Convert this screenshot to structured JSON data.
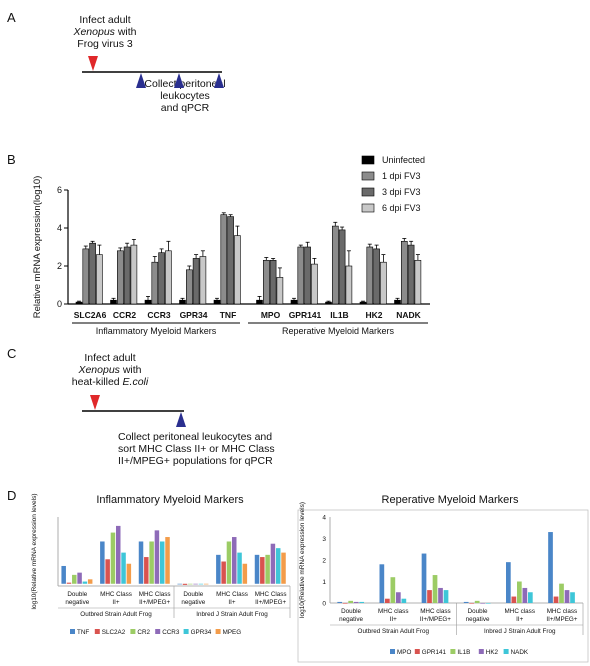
{
  "panels": {
    "A": {
      "letter": "A",
      "infect_line1": "Infect adult",
      "infect_line2": "Xenopus",
      "infect_line2b": " with",
      "infect_line3": "Frog virus 3",
      "collect_line1": "Collect peritoneal",
      "collect_line2": "leukocytes",
      "collect_line3": "and qPCR",
      "red_color": "#e0282a",
      "blue_color": "#2a2f8f"
    },
    "B": {
      "letter": "B"
    },
    "C": {
      "letter": "C",
      "infect_line1": "Infect adult",
      "infect_line2": "Xenopus",
      "infect_line2b": " with",
      "infect_line3a": "heat-killed ",
      "infect_line3b": "E.coli",
      "collect_line1": "Collect peritoneal leukocytes and",
      "collect_line2": "sort MHC Class II+ or MHC Class",
      "collect_line3": "II+/MPEG+ populations for qPCR"
    },
    "D": {
      "letter": "D",
      "left_title": "Inflammatory Myeloid Markers",
      "right_title": "Reperative Myeloid Markers"
    }
  },
  "chart_data": [
    {
      "type": "bar",
      "panel": "B",
      "ylabel": "Relative mRNA expression(log10)",
      "ylim": [
        0,
        6
      ],
      "yticks": [
        0,
        2,
        4,
        6
      ],
      "categories": [
        "SLC2A6",
        "CCR2",
        "CCR3",
        "GPR34",
        "TNF",
        "MPO",
        "GPR141",
        "IL1B",
        "HK2",
        "NADK"
      ],
      "groups": [
        {
          "label": "Inflammatory Myeloid Markers",
          "from": 0,
          "to": 4
        },
        {
          "label": "Reperative Myeloid Markers",
          "from": 5,
          "to": 9
        }
      ],
      "series": [
        {
          "name": "Uninfected",
          "color": "#000000",
          "values": [
            0.1,
            0.2,
            0.2,
            0.2,
            0.2,
            0.2,
            0.2,
            0.1,
            0.1,
            0.2
          ],
          "errors": [
            0.05,
            0.1,
            0.2,
            0.1,
            0.1,
            0.2,
            0.1,
            0.05,
            0.05,
            0.1
          ]
        },
        {
          "name": "1 dpi FV3",
          "color": "#8c8c8c",
          "values": [
            2.9,
            2.8,
            2.2,
            1.8,
            4.7,
            2.3,
            3.0,
            4.1,
            3.0,
            3.3
          ],
          "errors": [
            0.15,
            0.15,
            0.3,
            0.2,
            0.1,
            0.15,
            0.1,
            0.2,
            0.15,
            0.15
          ]
        },
        {
          "name": "3 dpi FV3",
          "color": "#6a6a6a",
          "values": [
            3.2,
            3.0,
            2.7,
            2.4,
            4.6,
            2.3,
            3.0,
            3.9,
            2.9,
            3.1
          ],
          "errors": [
            0.1,
            0.2,
            0.2,
            0.2,
            0.1,
            0.1,
            0.25,
            0.15,
            0.2,
            0.2
          ]
        },
        {
          "name": "6 dpi FV3",
          "color": "#c8c8c8",
          "values": [
            2.6,
            3.1,
            2.8,
            2.5,
            3.6,
            1.4,
            2.1,
            2.0,
            2.2,
            2.3
          ],
          "errors": [
            0.5,
            0.3,
            0.5,
            0.3,
            0.5,
            0.5,
            0.3,
            0.8,
            0.4,
            0.3
          ]
        }
      ],
      "legend_position": "top-right"
    },
    {
      "type": "bar",
      "panel": "D-left",
      "title": "Inflammatory Myeloid Markers",
      "ylabel": "log10(Relative mRNA expression levels)",
      "categories": [
        "Double negative",
        "MHC Class II+",
        "MHC Class II+/MPEG+",
        "Double negative",
        "MHC Class II+",
        "MHC Class II+/MPEG+"
      ],
      "category_groups": [
        {
          "label": "Outbred Strain Adult Frog",
          "from": 0,
          "to": 2
        },
        {
          "label": "Inbred J Strain Adult Frog",
          "from": 3,
          "to": 5
        }
      ],
      "ylim": [
        0,
        3
      ],
      "series": [
        {
          "name": "TNF",
          "color": "#4a86c8",
          "values": [
            0.8,
            1.9,
            1.9,
            0.0,
            1.3,
            1.3
          ]
        },
        {
          "name": "SLC2A2",
          "color": "#d9534f",
          "values": [
            0.05,
            1.1,
            1.2,
            -0.05,
            1.0,
            1.2
          ]
        },
        {
          "name": "CR2",
          "color": "#9ccc65",
          "values": [
            0.4,
            2.3,
            1.9,
            0.0,
            1.9,
            1.3
          ]
        },
        {
          "name": "CCR3",
          "color": "#8e6bb8",
          "values": [
            0.5,
            2.6,
            2.4,
            0.0,
            2.1,
            1.8
          ]
        },
        {
          "name": "GPR34",
          "color": "#3ec6d8",
          "values": [
            0.1,
            1.4,
            1.9,
            0.0,
            1.4,
            1.6
          ]
        },
        {
          "name": "MPEG",
          "color": "#f39c4a",
          "values": [
            0.2,
            0.9,
            2.1,
            0.0,
            0.9,
            1.4
          ]
        }
      ]
    },
    {
      "type": "bar",
      "panel": "D-right",
      "title": "Reperative Myeloid Markers",
      "ylabel": "log10(Relative mRNA expression levels)",
      "ylim": [
        0,
        4
      ],
      "yticks": [
        0,
        1,
        2,
        3,
        4
      ],
      "categories": [
        "Double negative",
        "MHC class II+",
        "MHC class II+/MPEG+",
        "Double negative",
        "MHC class II+",
        "MHC class II+/MPEG+"
      ],
      "category_groups": [
        {
          "label": "Outbred Strain Adult Frog",
          "from": 0,
          "to": 2
        },
        {
          "label": "Inbred J Strain Adult Frog",
          "from": 3,
          "to": 5
        }
      ],
      "series": [
        {
          "name": "MPO",
          "color": "#4a86c8",
          "values": [
            0.05,
            1.8,
            2.3,
            0.05,
            1.9,
            3.3
          ]
        },
        {
          "name": "GPR141",
          "color": "#d9534f",
          "values": [
            0.0,
            0.2,
            0.6,
            0.0,
            0.3,
            0.3
          ]
        },
        {
          "name": "IL1B",
          "color": "#9ccc65",
          "values": [
            0.1,
            1.2,
            1.3,
            0.1,
            1.0,
            0.9
          ]
        },
        {
          "name": "HK2",
          "color": "#8e6bb8",
          "values": [
            0.05,
            0.5,
            0.7,
            0.0,
            0.7,
            0.6
          ]
        },
        {
          "name": "NADK",
          "color": "#3ec6d8",
          "values": [
            0.05,
            0.2,
            0.6,
            0.0,
            0.5,
            0.5
          ]
        }
      ]
    }
  ]
}
